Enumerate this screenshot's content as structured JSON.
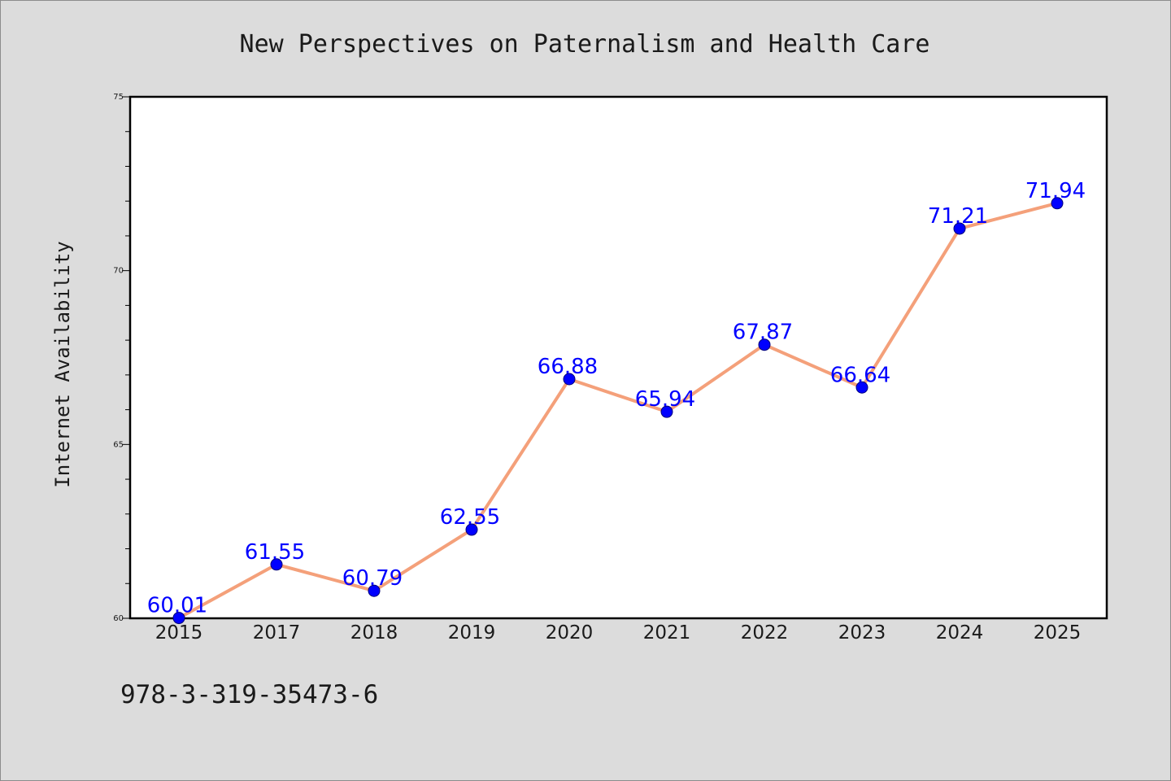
{
  "footer": {
    "identifier": "978-3-319-35473-6"
  },
  "chart_data": {
    "type": "line",
    "title": "New Perspectives on Paternalism and Health Care",
    "xlabel": "",
    "ylabel": "Internet Availability",
    "x": [
      "2015",
      "2017",
      "2018",
      "2019",
      "2020",
      "2021",
      "2022",
      "2023",
      "2024",
      "2025"
    ],
    "series": [
      {
        "values": [
          60.01,
          61.55,
          60.79,
          62.55,
          66.88,
          65.94,
          67.87,
          66.64,
          71.21,
          71.94
        ],
        "data_labels": [
          "60.01",
          "61.55",
          "60.79",
          "62.55",
          "66.88",
          "65.94",
          "67.87",
          "66.64",
          "71.21",
          "71.94"
        ],
        "line_color": "#f4a07a",
        "marker_color": "#0000ff"
      }
    ],
    "ylim": [
      60,
      75
    ],
    "yticks": [
      60,
      65,
      70,
      75
    ],
    "ytick_labels": [
      "60",
      "65",
      "70",
      "75"
    ],
    "grid": false,
    "legend": "none",
    "colors": {
      "background": "#dcdcdc",
      "plot_background": "#ffffff",
      "data_label": "#0000ff"
    }
  }
}
